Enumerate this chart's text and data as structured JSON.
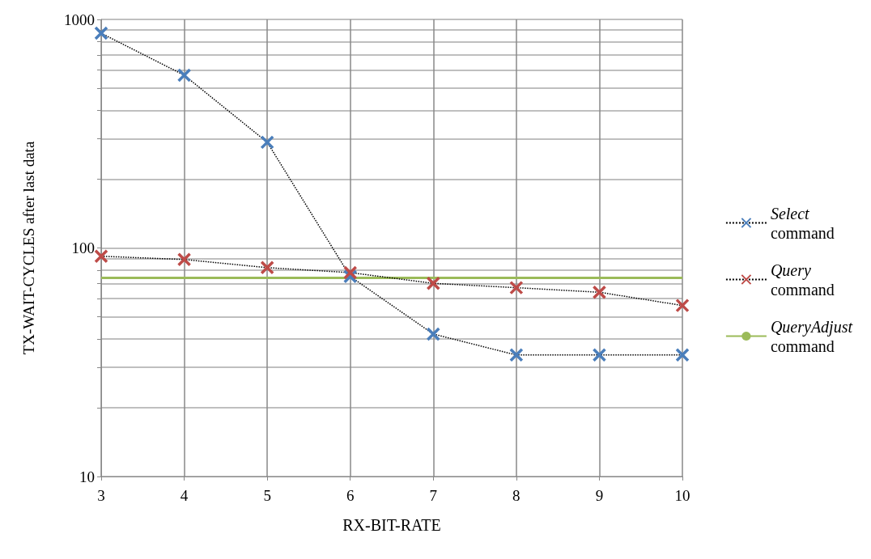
{
  "chart_data": {
    "type": "line",
    "xlabel": "RX-BIT-RATE",
    "ylabel": "TX-WAIT-CYCLES after last data",
    "x": [
      3,
      4,
      5,
      6,
      7,
      8,
      9,
      10
    ],
    "series": [
      {
        "name": "Select command",
        "color": "#4a7ebb",
        "values": [
          870,
          570,
          290,
          75,
          42,
          34,
          34,
          34
        ],
        "marker": "cross",
        "line_style": "dotted"
      },
      {
        "name": "Query command",
        "color": "#be4b48",
        "values": [
          92,
          89,
          82,
          78,
          70,
          67,
          64,
          56
        ],
        "marker": "cross",
        "line_style": "dotted"
      },
      {
        "name": "QueryAdjust command",
        "color": "#9bbb59",
        "values": [
          74,
          74,
          74,
          74,
          74,
          74,
          74,
          74
        ],
        "marker": "none",
        "line_style": "solid"
      }
    ],
    "log": "y",
    "xlim": [
      3,
      10
    ],
    "xticks": [
      3,
      4,
      5,
      6,
      7,
      8,
      9,
      10
    ],
    "ylim": [
      10,
      1000
    ],
    "yticks": [
      10,
      {
        "value": 20,
        "label": null
      },
      {
        "value": 30,
        "label": null
      },
      {
        "value": 40,
        "label": null
      },
      {
        "value": 50,
        "label": null
      },
      {
        "value": 60,
        "label": null
      },
      {
        "value": 70,
        "label": null
      },
      {
        "value": 80,
        "label": null
      },
      {
        "value": 90,
        "label": null
      },
      100,
      {
        "value": 200,
        "label": null
      },
      {
        "value": 300,
        "label": null
      },
      {
        "value": 400,
        "label": null
      },
      {
        "value": 500,
        "label": null
      },
      {
        "value": 600,
        "label": null
      },
      {
        "value": 700,
        "label": null
      },
      {
        "value": 800,
        "label": null
      },
      {
        "value": 900,
        "label": null
      },
      1000
    ],
    "grid": true,
    "legend": "right"
  }
}
